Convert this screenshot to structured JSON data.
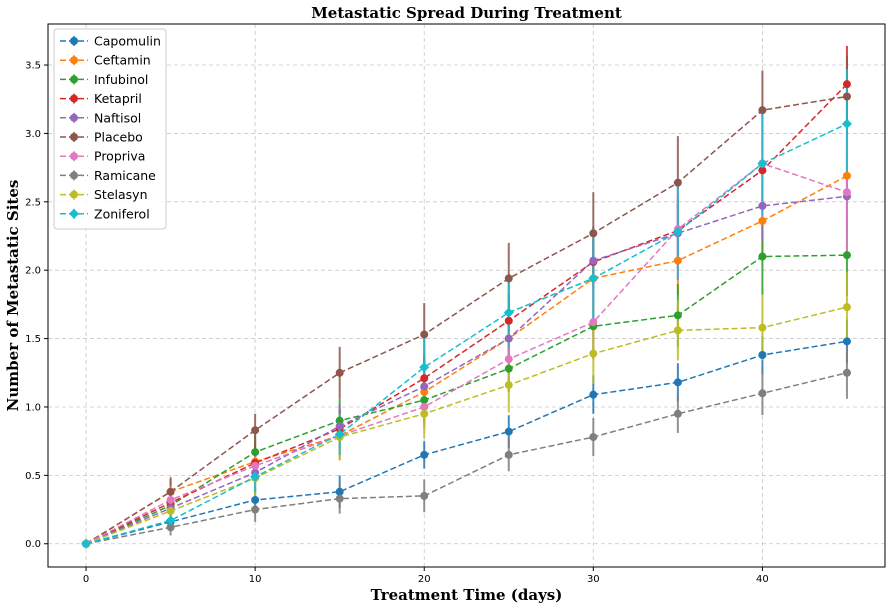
{
  "chart_data": {
    "type": "line",
    "title": "Metastatic Spread During Treatment",
    "xlabel": "Treatment Time (days)",
    "ylabel": "Number of Metastatic Sites",
    "xlim": [
      -2.25,
      47.25
    ],
    "ylim": [
      -0.17,
      3.8
    ],
    "xticks": [
      0,
      10,
      20,
      30,
      40
    ],
    "yticks": [
      0.0,
      0.5,
      1.0,
      1.5,
      2.0,
      2.5,
      3.0,
      3.5
    ],
    "grid": true,
    "legend_position": "top-left",
    "x": [
      0,
      5,
      10,
      15,
      20,
      25,
      30,
      35,
      40,
      45
    ],
    "series": [
      {
        "name": "Capomulin",
        "color": "#1f77b4",
        "marker": "circle",
        "values": [
          0.0,
          0.16,
          0.32,
          0.38,
          0.65,
          0.82,
          1.09,
          1.18,
          1.38,
          1.48
        ],
        "errors": [
          0.0,
          0.07,
          0.09,
          0.12,
          0.1,
          0.12,
          0.14,
          0.14,
          0.14,
          0.16
        ]
      },
      {
        "name": "Ceftamin",
        "color": "#ff7f0e",
        "marker": "circle",
        "values": [
          0.0,
          0.38,
          0.6,
          0.79,
          1.11,
          1.5,
          1.94,
          2.07,
          2.36,
          2.69
        ],
        "errors": [
          0.0,
          0.11,
          0.15,
          0.18,
          0.24,
          0.23,
          0.25,
          0.25,
          0.29,
          0.31
        ]
      },
      {
        "name": "Infubinol",
        "color": "#2ca02c",
        "marker": "circle",
        "values": [
          0.0,
          0.28,
          0.67,
          0.9,
          1.05,
          1.28,
          1.59,
          1.67,
          2.1,
          2.11
        ],
        "errors": [
          0.0,
          0.09,
          0.13,
          0.16,
          0.17,
          0.17,
          0.24,
          0.23,
          0.28,
          0.3
        ]
      },
      {
        "name": "Ketapril",
        "color": "#d62728",
        "marker": "circle",
        "values": [
          0.0,
          0.3,
          0.59,
          0.84,
          1.21,
          1.63,
          2.06,
          2.29,
          2.73,
          3.36
        ],
        "errors": [
          0.0,
          0.1,
          0.12,
          0.14,
          0.17,
          0.2,
          0.21,
          0.23,
          0.23,
          0.28
        ]
      },
      {
        "name": "Naftisol",
        "color": "#9467bd",
        "marker": "circle",
        "values": [
          0.0,
          0.26,
          0.52,
          0.86,
          1.15,
          1.5,
          2.07,
          2.27,
          2.47,
          2.54
        ],
        "errors": [
          0.0,
          0.09,
          0.14,
          0.16,
          0.17,
          0.2,
          0.25,
          0.26,
          0.26,
          0.28
        ]
      },
      {
        "name": "Placebo",
        "color": "#8c564b",
        "marker": "circle",
        "values": [
          0.0,
          0.38,
          0.83,
          1.25,
          1.53,
          1.94,
          2.27,
          2.64,
          3.17,
          3.27
        ],
        "errors": [
          0.0,
          0.1,
          0.12,
          0.19,
          0.23,
          0.26,
          0.3,
          0.34,
          0.29,
          0.3
        ]
      },
      {
        "name": "Propriva",
        "color": "#e377c2",
        "marker": "circle",
        "values": [
          0.0,
          0.32,
          0.57,
          0.79,
          1.0,
          1.35,
          1.62,
          2.3,
          2.78,
          2.57
        ],
        "errors": [
          0.0,
          0.1,
          0.11,
          0.14,
          0.16,
          0.21,
          0.27,
          0.37,
          0.39,
          0.43
        ]
      },
      {
        "name": "Ramicane",
        "color": "#7f7f7f",
        "marker": "circle",
        "values": [
          0.0,
          0.12,
          0.25,
          0.33,
          0.35,
          0.65,
          0.78,
          0.95,
          1.1,
          1.25
        ],
        "errors": [
          0.0,
          0.06,
          0.09,
          0.11,
          0.12,
          0.12,
          0.14,
          0.14,
          0.16,
          0.19
        ]
      },
      {
        "name": "Stelasyn",
        "color": "#bcbd22",
        "marker": "circle",
        "values": [
          0.0,
          0.24,
          0.48,
          0.78,
          0.95,
          1.16,
          1.39,
          1.56,
          1.58,
          1.73
        ],
        "errors": [
          0.0,
          0.1,
          0.14,
          0.17,
          0.18,
          0.2,
          0.22,
          0.22,
          0.24,
          0.26
        ]
      },
      {
        "name": "Zoniferol",
        "color": "#17becf",
        "marker": "diamond",
        "values": [
          0.0,
          0.17,
          0.49,
          0.8,
          1.29,
          1.69,
          1.94,
          2.28,
          2.78,
          3.07
        ],
        "errors": [
          0.0,
          0.08,
          0.11,
          0.15,
          0.24,
          0.25,
          0.31,
          0.35,
          0.38,
          0.4
        ]
      }
    ]
  }
}
